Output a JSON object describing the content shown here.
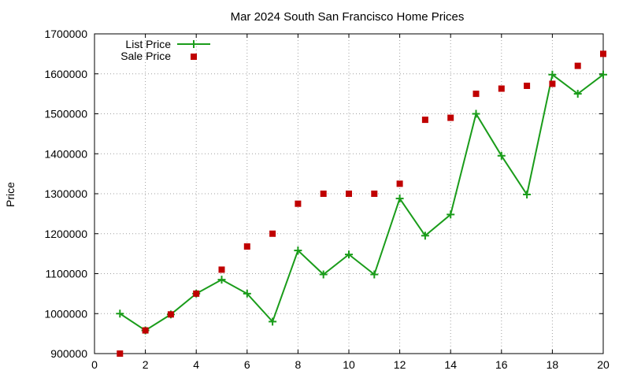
{
  "chart_data": {
    "type": "line",
    "title": "Mar 2024 South San Francisco Home Prices",
    "xlabel": "",
    "ylabel": "Price",
    "xlim": [
      0,
      20
    ],
    "ylim": [
      900000,
      1700000
    ],
    "x_ticks": [
      "0",
      "2",
      "4",
      "6",
      "8",
      "10",
      "12",
      "14",
      "16",
      "18",
      "20"
    ],
    "y_ticks": [
      "900000",
      "1000000",
      "1100000",
      "1200000",
      "1300000",
      "1400000",
      "1500000",
      "1600000",
      "1700000"
    ],
    "grid": true,
    "legend_position": "top-left",
    "series": [
      {
        "name": "List Price",
        "style": "line+plus-markers",
        "color": "#1a9c1a",
        "x": [
          1,
          2,
          3,
          4,
          5,
          6,
          7,
          8,
          9,
          10,
          11,
          12,
          13,
          14,
          15,
          16,
          17,
          18,
          19,
          20
        ],
        "y": [
          1000000,
          958000,
          998000,
          1050000,
          1085000,
          1050000,
          980000,
          1158000,
          1098000,
          1148000,
          1098000,
          1288000,
          1195000,
          1248000,
          1500000,
          1395000,
          1298000,
          1598000,
          1550000,
          1598000
        ]
      },
      {
        "name": "Sale Price",
        "style": "square-markers",
        "color": "#c00000",
        "x": [
          1,
          2,
          3,
          4,
          5,
          6,
          7,
          8,
          9,
          10,
          11,
          12,
          13,
          14,
          15,
          16,
          17,
          18,
          19,
          20
        ],
        "y": [
          900000,
          958000,
          998000,
          1050000,
          1110000,
          1168000,
          1200000,
          1275000,
          1300000,
          1300000,
          1300000,
          1325000,
          1485000,
          1490000,
          1550000,
          1563000,
          1570000,
          1575000,
          1620000,
          1650000
        ]
      }
    ]
  }
}
